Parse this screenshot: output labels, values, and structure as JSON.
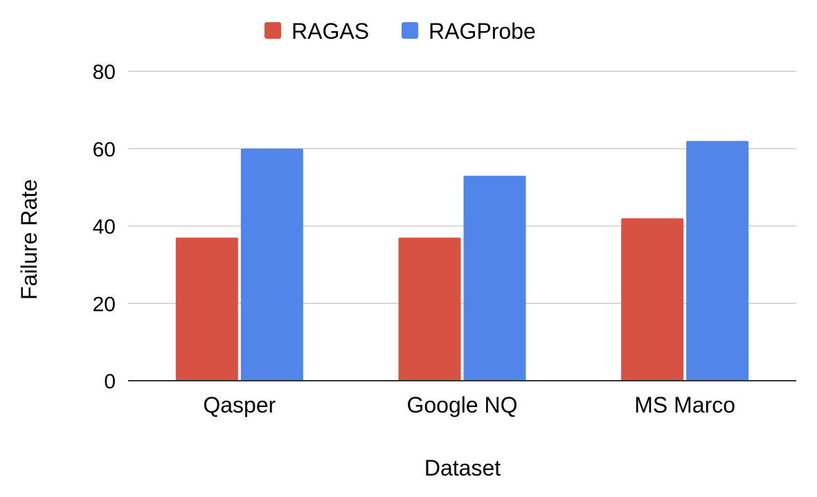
{
  "chart_data": {
    "type": "bar",
    "categories": [
      "Qasper",
      "Google NQ",
      "MS Marco"
    ],
    "series": [
      {
        "name": "RAGAS",
        "values": [
          37,
          37,
          42
        ],
        "color": "#d75242"
      },
      {
        "name": "RAGProbe",
        "values": [
          60,
          53,
          62
        ],
        "color": "#5285ea"
      }
    ],
    "title": "",
    "xlabel": "Dataset",
    "ylabel": "Failure Rate",
    "ylim": [
      0,
      80
    ],
    "yticks": [
      0,
      20,
      40,
      60,
      80
    ],
    "grid": true,
    "legend_position": "top"
  }
}
